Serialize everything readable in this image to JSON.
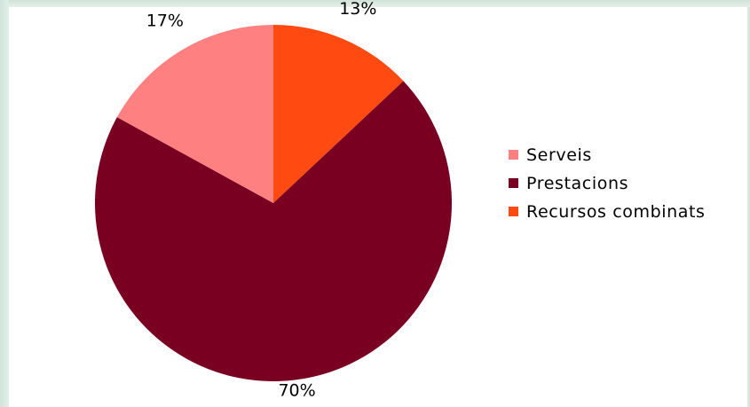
{
  "chart_data": {
    "type": "pie",
    "title": "",
    "categories": [
      "Serveis",
      "Prestacions",
      "Recursos combinats"
    ],
    "values": [
      17,
      70,
      13
    ],
    "labels": [
      "17%",
      "70%",
      "13%"
    ],
    "colors": [
      "#ff8080",
      "#7a0022",
      "#ff4a12"
    ],
    "legend_position": "right",
    "start_angle_deg": 0,
    "direction": "clockwise"
  }
}
